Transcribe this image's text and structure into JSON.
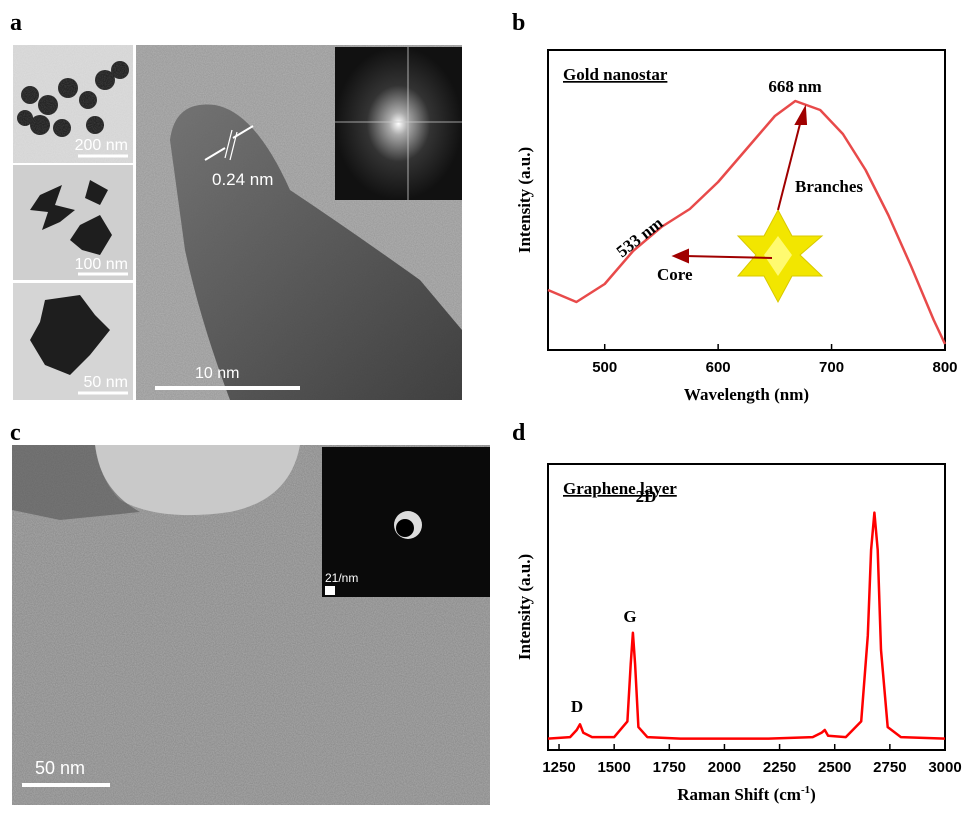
{
  "panels": {
    "a": "a",
    "b": "b",
    "c": "c",
    "d": "d"
  },
  "images": {
    "a_small_1_scale": "200 nm",
    "a_small_2_scale": "100 nm",
    "a_small_3_scale": "50 nm",
    "a_main_scale": "10 nm",
    "a_lattice": "0.24 nm",
    "c_inset_scale": "21/nm",
    "c_main_scale": "50 nm"
  },
  "chart_data": [
    {
      "type": "line",
      "annotation_title": "Gold nanostar",
      "x_label": "Wavelength (nm)",
      "y_label": "Intensity (a.u.)",
      "peak_label": "668 nm",
      "shoulder_label": "533 nm",
      "branches_label": "Branches",
      "core_label": "Core",
      "x": [
        450,
        475,
        500,
        525,
        550,
        575,
        600,
        625,
        650,
        668,
        690,
        710,
        730,
        750,
        770,
        790,
        800
      ],
      "values": [
        0.2,
        0.16,
        0.22,
        0.33,
        0.41,
        0.47,
        0.56,
        0.67,
        0.78,
        0.83,
        0.8,
        0.72,
        0.6,
        0.45,
        0.28,
        0.1,
        0.02
      ],
      "color": "#e84a4a",
      "xlim": [
        450,
        800
      ],
      "xticks": [
        500,
        600,
        700,
        800
      ],
      "ylim": [
        0,
        1
      ]
    },
    {
      "type": "line",
      "annotation_title": "Graphene layer",
      "x_label": "Raman Shift (cm",
      "x_label_sup": "-1",
      "x_label_end": ")",
      "y_label": "Intensity (a.u.)",
      "peak_labels": [
        "D",
        "G",
        "2D"
      ],
      "x": [
        1200,
        1300,
        1330,
        1345,
        1360,
        1400,
        1500,
        1560,
        1575,
        1585,
        1595,
        1610,
        1650,
        1800,
        2000,
        2200,
        2400,
        2440,
        2455,
        2470,
        2550,
        2620,
        2650,
        2665,
        2680,
        2695,
        2710,
        2740,
        2800,
        3000
      ],
      "values": [
        0.04,
        0.045,
        0.07,
        0.09,
        0.06,
        0.045,
        0.045,
        0.1,
        0.3,
        0.41,
        0.3,
        0.08,
        0.045,
        0.04,
        0.04,
        0.04,
        0.045,
        0.06,
        0.07,
        0.05,
        0.045,
        0.1,
        0.4,
        0.7,
        0.83,
        0.7,
        0.35,
        0.08,
        0.045,
        0.04
      ],
      "color": "#ff0000",
      "xlim": [
        1200,
        3000
      ],
      "xticks": [
        1250,
        1500,
        1750,
        2000,
        2250,
        2500,
        2750,
        3000
      ],
      "ylim": [
        0,
        1
      ]
    }
  ]
}
